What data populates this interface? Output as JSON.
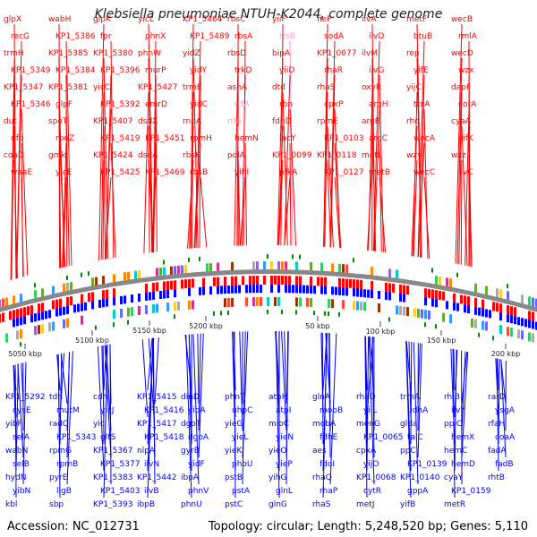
{
  "title": "Klebsiella pneumoniae NTUH-K2044, complete genome",
  "footer": {
    "accession": "Accession: NC_012731",
    "summary": "Topology: circular; Length: 5,248,520 bp; Genes: 5,110"
  },
  "colors": {
    "forward": "#ff0000",
    "reverse": "#0000ff",
    "rna": "#ff99cc",
    "backbone": "#888888",
    "marker": "#008800"
  },
  "scale_labels": [
    "5050 kbp",
    "5100 kbp",
    "5150 kbp",
    "5200 kbp",
    "50 kbp",
    "100 kbp",
    "150 kbp",
    "200 kbp"
  ],
  "top_genes": [
    "glpX",
    "recG",
    "trmH",
    "KP1_5349",
    "KP1_5347",
    "KP1_5346",
    "dut",
    "dfp",
    "coaD",
    "waaE",
    "wabH",
    "KP1_5386",
    "KP1_5385",
    "KP1_5384",
    "KP1_5381",
    "glpF",
    "spoT",
    "rpoZ",
    "gmk",
    "yicE",
    "glpK",
    "fpr",
    "KP1_5380",
    "KP1_5396",
    "yicC",
    "KP1_5392",
    "KP1_5407",
    "KP1_5419",
    "KP1_5424",
    "KP1_5425",
    "yicL",
    "phnX",
    "phnW",
    "murP",
    "KP1_5427",
    "emrD",
    "dsdX",
    "KP1_5451",
    "dsdA",
    "KP1_5469",
    "KP1_5464",
    "KP1_5489",
    "yidZ",
    "yidY",
    "trmE",
    "yidC",
    "rnpA",
    "rpmH",
    "rbsK",
    "rbsB",
    "rbsC",
    "rbsA",
    "rbsD",
    "trkD",
    "asnA",
    "rrfA",
    "rrlA",
    "hemN",
    "polA",
    "yihI",
    "yiiF",
    "rrsB",
    "bipA",
    "yiiD",
    "dtd",
    "rbn",
    "fdhD",
    "lacY",
    "KP1_0099",
    "pfkA",
    "fieF",
    "sodA",
    "KP1_0077",
    "rhaR",
    "rhaS",
    "cpxP",
    "rpmE",
    "KP1_0103",
    "KP1_0118",
    "KP1_0127",
    "ilvA",
    "ilvD",
    "ilvM",
    "ilvG",
    "oxyR",
    "argH",
    "argB",
    "argC",
    "metL",
    "metB",
    "metF",
    "btuB",
    "rep",
    "yifE",
    "yijC",
    "trxA",
    "rho",
    "wecA",
    "wzy",
    "wecC",
    "wecB",
    "rmlA",
    "wecD",
    "wzx",
    "dapF",
    "corA",
    "cyaA",
    "yifK",
    "wzz",
    "ilvC"
  ],
  "bottom_genes": [
    "KP1_5292",
    "cysE",
    "yibF",
    "selA",
    "wabN",
    "selB",
    "hydN",
    "yibN",
    "kbl",
    "tdh",
    "mutM",
    "radC",
    "KP1_5343",
    "rpmG",
    "rpmB",
    "pyrE",
    "ligB",
    "sbp",
    "cdh",
    "yicJ",
    "yicI",
    "gltS",
    "KP1_5367",
    "KP1_5377",
    "KP1_5383",
    "KP1_5403",
    "KP1_5393",
    "KP1_5415",
    "KP1_5416",
    "KP1_5417",
    "KP1_5418",
    "nlpA",
    "ilvN",
    "KP1_5442",
    "ilvB",
    "ibpB",
    "dinD",
    "yidA",
    "dgoT",
    "dgoA",
    "gyrB",
    "yidF",
    "ibpA",
    "phnV",
    "phnU",
    "phnT",
    "uhpC",
    "yieG",
    "yieL",
    "yieK",
    "phoU",
    "pstB",
    "pstA",
    "pstC",
    "atpH",
    "atpI",
    "mioC",
    "yieN",
    "yieO",
    "yieP",
    "yihG",
    "glnL",
    "glnG",
    "glnA",
    "mobB",
    "mobA",
    "fdhE",
    "aes",
    "fdoI",
    "rhaQ",
    "rhaP",
    "rhaS",
    "rhaD",
    "yiiL",
    "menG",
    "KP1_0065",
    "cpxA",
    "yijO",
    "KP1_0068",
    "cytR",
    "metJ",
    "trmA",
    "udhA",
    "glda",
    "talC",
    "ppC",
    "KP1_0139",
    "KP1_0140",
    "gppA",
    "yifB",
    "rhlB",
    "ilvY",
    "ppiC",
    "hemX",
    "hemC",
    "hemD",
    "cyaY",
    "KP1_0159",
    "metR",
    "rarD",
    "ysgA",
    "rfaH",
    "coaA",
    "fadA",
    "fadB",
    "rhtB"
  ]
}
